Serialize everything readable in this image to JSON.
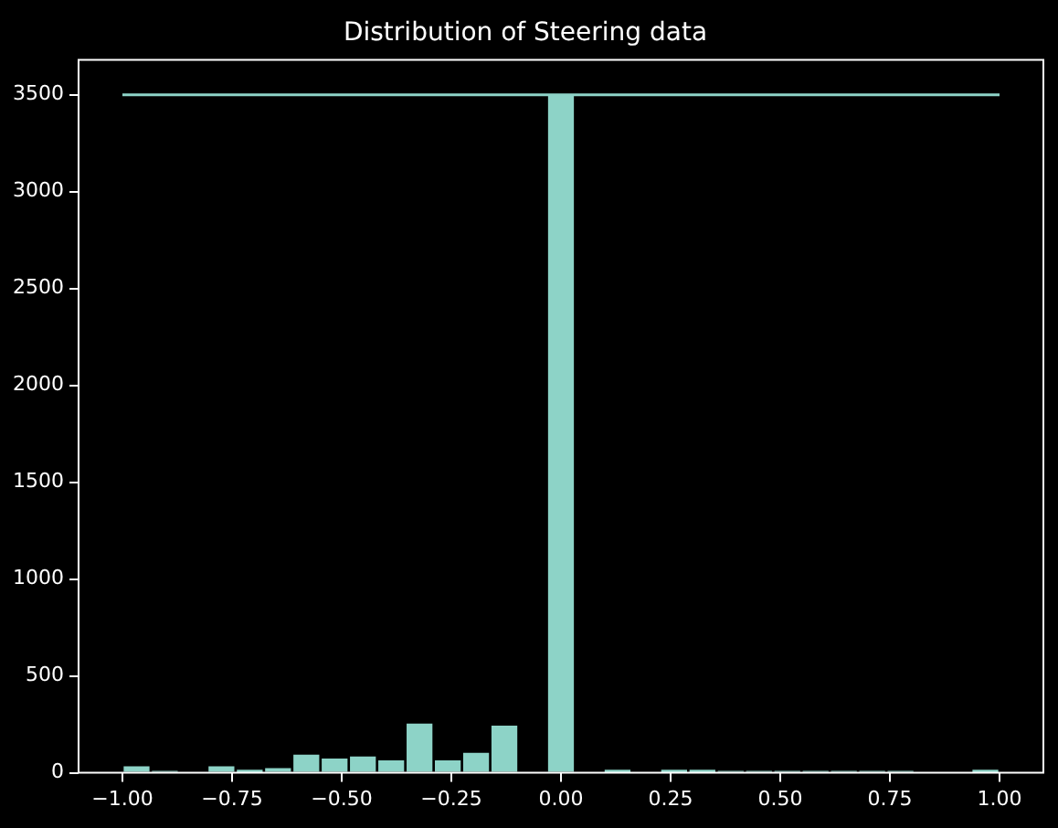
{
  "chart_data": {
    "type": "histogram",
    "title": "Distribution of Steering data",
    "bins": [
      -1,
      -0.9355,
      -0.871,
      -0.8065,
      -0.7419,
      -0.6774,
      -0.6129,
      -0.5484,
      -0.4839,
      -0.4194,
      -0.3548,
      -0.2903,
      -0.2258,
      -0.1613,
      -0.0968,
      -0.0323,
      0.0323,
      0.0968,
      0.1613,
      0.2258,
      0.2903,
      0.3548,
      0.4194,
      0.4839,
      0.5484,
      0.6129,
      0.6774,
      0.7419,
      0.8065,
      0.871,
      0.9355,
      1
    ],
    "values": [
      40,
      10,
      0,
      40,
      20,
      30,
      100,
      80,
      90,
      70,
      260,
      70,
      110,
      250,
      0,
      3500,
      0,
      20,
      0,
      20,
      20,
      10,
      10,
      10,
      10,
      10,
      10,
      10,
      0,
      0,
      20
    ],
    "color": "#8dd3c7",
    "xlim": [
      -1.1,
      1.1
    ],
    "xticks": [
      {
        "value": -1,
        "label": "−1.00"
      },
      {
        "value": -0.75,
        "label": "−0.75"
      },
      {
        "value": -0.5,
        "label": "−0.50"
      },
      {
        "value": -0.25,
        "label": "−0.25"
      },
      {
        "value": 0,
        "label": "0.00"
      },
      {
        "value": 0.25,
        "label": "0.25"
      },
      {
        "value": 0.5,
        "label": "0.50"
      },
      {
        "value": 0.75,
        "label": "0.75"
      },
      {
        "value": 1,
        "label": "1.00"
      }
    ],
    "ylim": [
      0,
      3680
    ],
    "yticks": [
      0,
      500,
      1000,
      1500,
      2000,
      2500,
      3000,
      3500
    ],
    "ref_lines": [
      {
        "axis": "y",
        "value": 3500,
        "color": "#8dd3c7"
      }
    ],
    "grid": false,
    "legend": false
  }
}
